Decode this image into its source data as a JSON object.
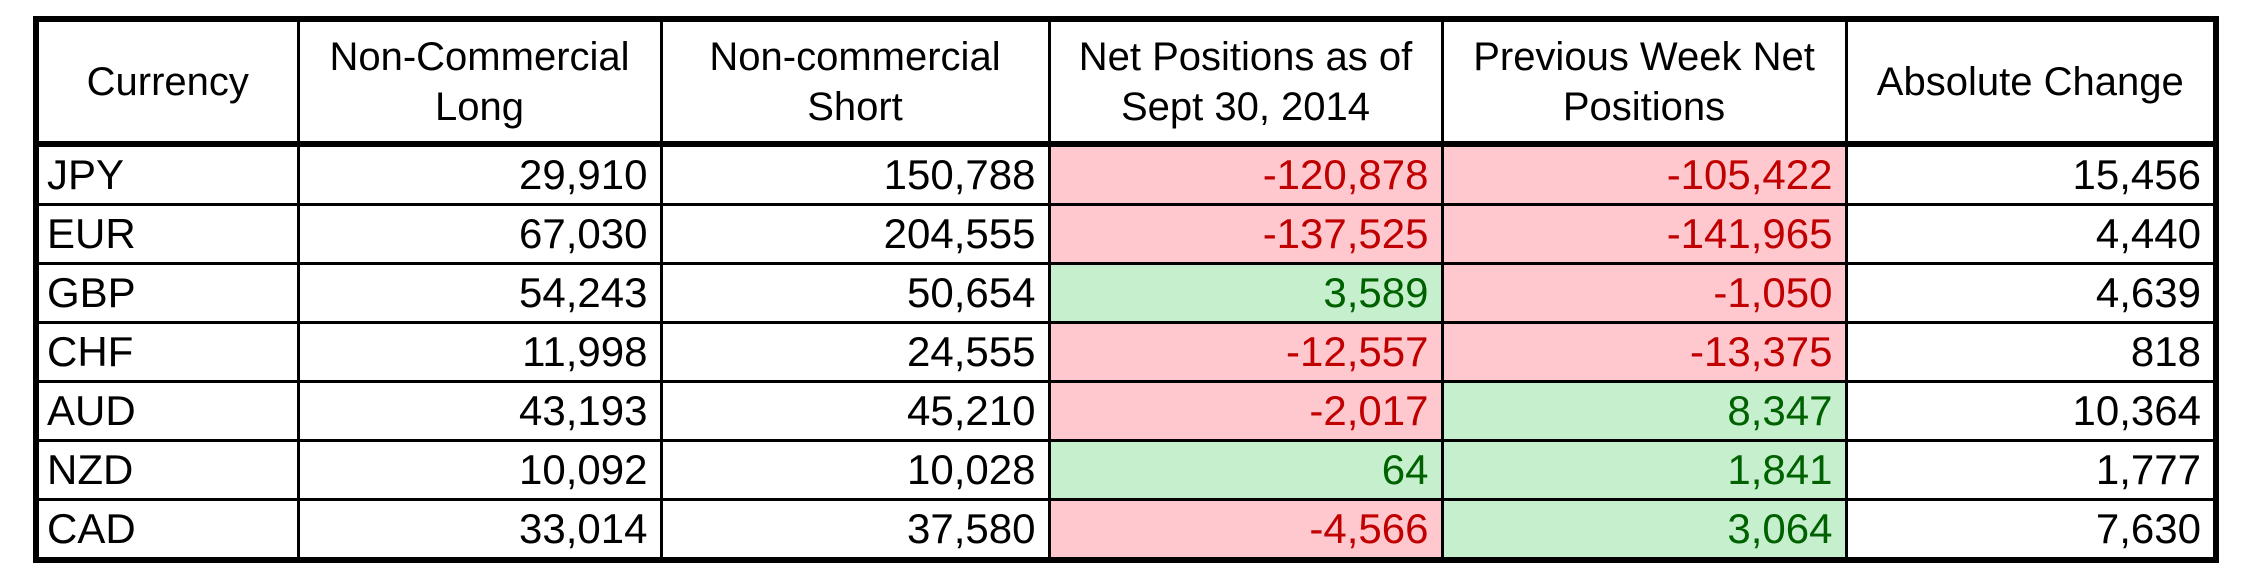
{
  "table": {
    "headers": [
      "Currency",
      "Non-Commercial Long",
      "Non-commercial Short",
      "Net Positions as of Sept 30, 2014",
      "Previous Week Net Positions",
      "Absolute Change"
    ],
    "rows": [
      {
        "currency": "JPY",
        "long": "29,910",
        "short": "150,788",
        "net": "-120,878",
        "prev": "-105,422",
        "change": "15,456"
      },
      {
        "currency": "EUR",
        "long": "67,030",
        "short": "204,555",
        "net": "-137,525",
        "prev": "-141,965",
        "change": "4,440"
      },
      {
        "currency": "GBP",
        "long": "54,243",
        "short": "50,654",
        "net": "3,589",
        "prev": "-1,050",
        "change": "4,639"
      },
      {
        "currency": "CHF",
        "long": "11,998",
        "short": "24,555",
        "net": "-12,557",
        "prev": "-13,375",
        "change": "818"
      },
      {
        "currency": "AUD",
        "long": "43,193",
        "short": "45,210",
        "net": "-2,017",
        "prev": "8,347",
        "change": "10,364"
      },
      {
        "currency": "NZD",
        "long": "10,092",
        "short": "10,028",
        "net": "64",
        "prev": "1,841",
        "change": "1,777"
      },
      {
        "currency": "CAD",
        "long": "33,014",
        "short": "37,580",
        "net": "-4,566",
        "prev": "3,064",
        "change": "7,630"
      }
    ]
  },
  "colors": {
    "negative_fill": "#ffc7ce",
    "negative_text": "#c00000",
    "positive_fill": "#c6efce",
    "positive_text": "#006100"
  }
}
